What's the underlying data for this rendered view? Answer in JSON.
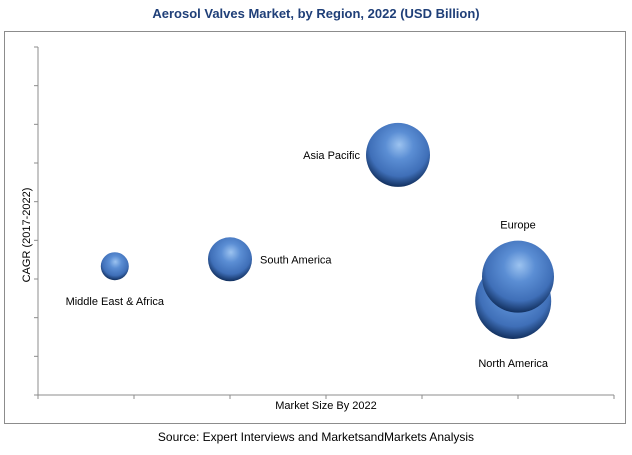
{
  "title": "Aerosol Valves Market, by Region, 2022 (USD Billion)",
  "source": "Source: Expert Interviews and MarketsandMarkets Analysis",
  "chart_data": {
    "type": "scatter",
    "variant": "bubble",
    "xlabel": "Market Size By 2022",
    "ylabel": "CAGR (2017-2022)",
    "xlim": [
      0,
      6
    ],
    "ylim": [
      0,
      10
    ],
    "grid": false,
    "tick_labels_shown": false,
    "colors": {
      "bubble": "#3f6fb8",
      "bubble_highlight": "#9cc3f0",
      "bubble_shadow": "#12305f"
    },
    "points": [
      {
        "label": "Middle East & Africa",
        "x": 0.8,
        "y": 3.7,
        "size": 0.35,
        "label_position": "bottom-left"
      },
      {
        "label": "South America",
        "x": 2.0,
        "y": 3.9,
        "size": 0.55,
        "label_position": "right"
      },
      {
        "label": "Asia Pacific",
        "x": 3.75,
        "y": 6.9,
        "size": 0.8,
        "label_position": "left"
      },
      {
        "label": "North America",
        "x": 4.95,
        "y": 2.7,
        "size": 0.95,
        "label_position": "bottom"
      },
      {
        "label": "Europe",
        "x": 5.0,
        "y": 3.4,
        "size": 0.9,
        "label_position": "top"
      }
    ]
  }
}
